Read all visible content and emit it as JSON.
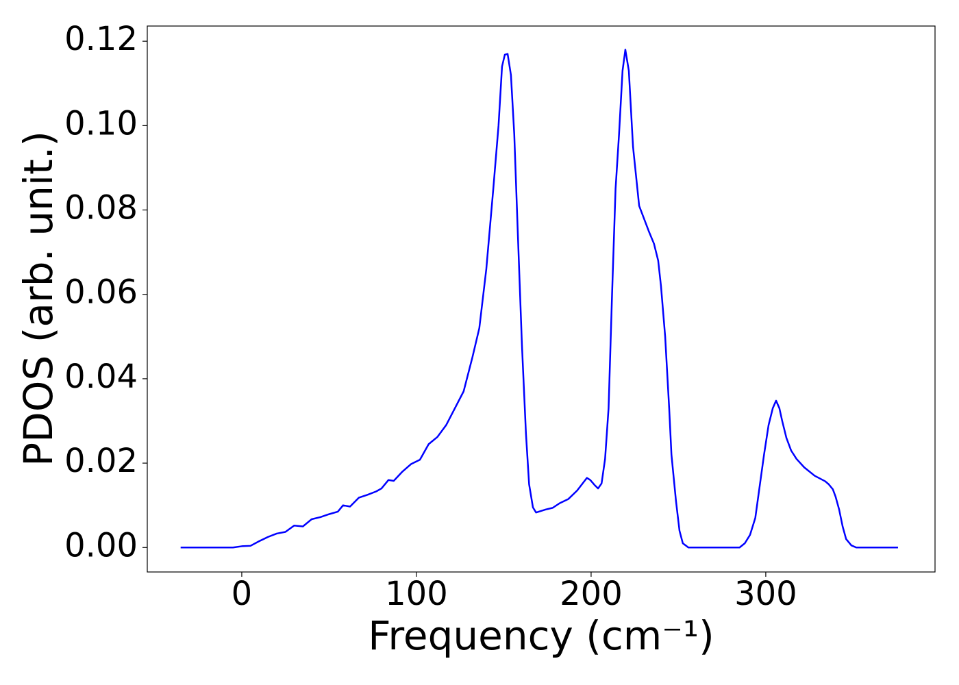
{
  "chart_data": {
    "type": "line",
    "xlabel": "Frequency (cm⁻¹)",
    "ylabel": "PDOS (arb. unit.)",
    "xlim": [
      -54.1,
      396.9
    ],
    "ylim": [
      -0.0058,
      0.1236
    ],
    "xticks": [
      0,
      100,
      200,
      300
    ],
    "yticks": [
      {
        "value": 0,
        "label": "0.00"
      },
      0.02,
      0.04,
      0.06,
      0.08,
      {
        "value": 0.1,
        "label": "0.10"
      },
      0.12
    ],
    "series": [
      {
        "name": "PDOS",
        "color": "#0000ff",
        "x": [
          -35,
          -25,
          -15,
          -5,
          0,
          5,
          10,
          15,
          20,
          25,
          30,
          35,
          40,
          45,
          50,
          55,
          58,
          62,
          67,
          72,
          77,
          80,
          84,
          87,
          92,
          97,
          102,
          107,
          112,
          117,
          122,
          127,
          132,
          136,
          140,
          144,
          147,
          149,
          150.6,
          152.2,
          154.1,
          156,
          158,
          160.4,
          162.7,
          164.5,
          166.7,
          168.5,
          174,
          178,
          182,
          187,
          192,
          197.6,
          199.5,
          202,
          204,
          206,
          208,
          210,
          212,
          214,
          216,
          218,
          219.6,
          221.6,
          224,
          227.5,
          233,
          236,
          238.4,
          240,
          242.4,
          244.7,
          246,
          248.6,
          250.6,
          252.5,
          255.7,
          270,
          285,
          288,
          291,
          294,
          296,
          299,
          301.6,
          304,
          305.9,
          307.8,
          309.4,
          311.8,
          314.5,
          317.6,
          322,
          328,
          334,
          336,
          338.4,
          340,
          342,
          344,
          346,
          349,
          351.8,
          375.7
        ],
        "values": [
          0,
          0,
          0,
          0,
          0.0003,
          0.0004,
          0.0015,
          0.0025,
          0.0033,
          0.0037,
          0.0052,
          0.005,
          0.0067,
          0.0072,
          0.0079,
          0.0085,
          0.01,
          0.0097,
          0.0118,
          0.0125,
          0.0133,
          0.014,
          0.016,
          0.0158,
          0.018,
          0.0198,
          0.0208,
          0.0245,
          0.0262,
          0.029,
          0.033,
          0.037,
          0.045,
          0.052,
          0.066,
          0.085,
          0.1,
          0.114,
          0.1168,
          0.117,
          0.112,
          0.098,
          0.075,
          0.048,
          0.027,
          0.015,
          0.0095,
          0.0083,
          0.009,
          0.0094,
          0.0105,
          0.0115,
          0.0135,
          0.0165,
          0.016,
          0.0148,
          0.014,
          0.0152,
          0.021,
          0.033,
          0.06,
          0.085,
          0.098,
          0.113,
          0.118,
          0.113,
          0.095,
          0.081,
          0.075,
          0.072,
          0.068,
          0.062,
          0.05,
          0.033,
          0.022,
          0.011,
          0.004,
          0.001,
          0,
          0,
          0,
          0.001,
          0.003,
          0.007,
          0.013,
          0.022,
          0.029,
          0.033,
          0.0348,
          0.033,
          0.03,
          0.026,
          0.023,
          0.021,
          0.019,
          0.017,
          0.0157,
          0.015,
          0.0138,
          0.012,
          0.009,
          0.005,
          0.002,
          0.0005,
          0,
          0
        ]
      }
    ]
  }
}
